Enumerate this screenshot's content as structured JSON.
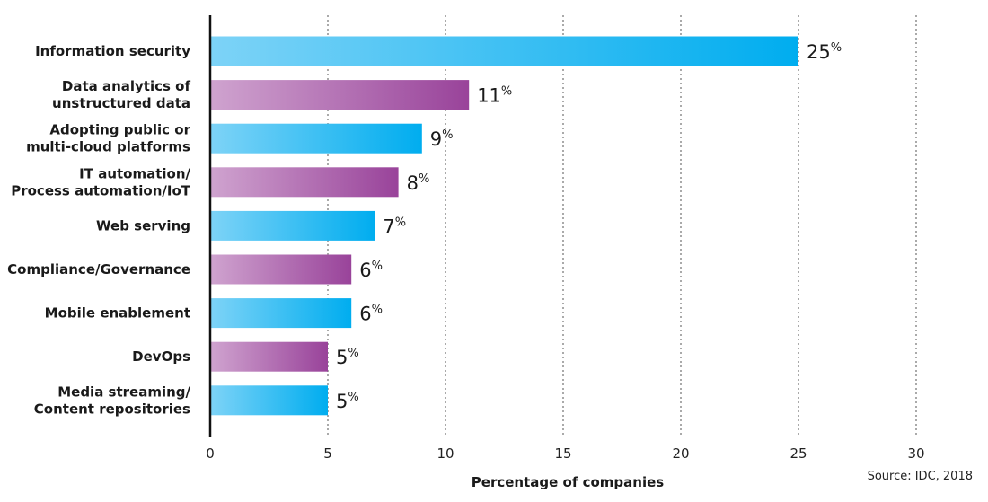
{
  "chart_data": {
    "type": "bar",
    "orientation": "horizontal",
    "categories": [
      [
        "Information security"
      ],
      [
        "Data analytics of",
        "unstructured data"
      ],
      [
        "Adopting public or",
        "multi-cloud platforms"
      ],
      [
        "IT automation/",
        "Process automation/IoT"
      ],
      [
        "Web serving"
      ],
      [
        "Compliance/Governance"
      ],
      [
        "Mobile enablement"
      ],
      [
        "DevOps"
      ],
      [
        "Media streaming/",
        "Content repositories"
      ]
    ],
    "values": [
      25,
      11,
      9,
      8,
      7,
      6,
      6,
      5,
      5
    ],
    "value_unit": "%",
    "xlabel": "Percentage of companies",
    "xlim": [
      0,
      30
    ],
    "xticks": [
      0,
      5,
      10,
      15,
      20,
      25,
      30
    ],
    "grid": "vertical-dotted",
    "colors": {
      "blue": "#00adef",
      "blue_light": "#7dd3f7",
      "purple": "#99439a",
      "purple_light": "#cfa3cf",
      "axis": "#111111",
      "grid": "#555555"
    },
    "bar_color_pattern": [
      "blue",
      "purple"
    ],
    "source": "Source: IDC, 2018"
  }
}
